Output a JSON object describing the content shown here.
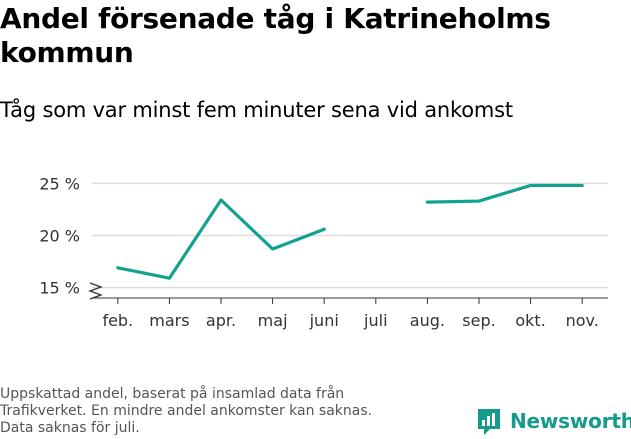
{
  "header": {
    "title": "Andel försenade tåg i Katrineholms kommun",
    "subtitle": "Tåg som var minst fem minuter sena vid ankomst"
  },
  "footer": {
    "note_lines": [
      "Uppskattad andel, baserat på insamlad data från",
      "Trafikverket. En mindre andel ankomster kan saknas.",
      "Data saknas för juli."
    ],
    "brand": "Newsworthy",
    "brand_icon": "newsworthy-logo-icon"
  },
  "colors": {
    "line": "#13a190",
    "brand": "#159a8c",
    "grid": "#dddddd",
    "axis": "#333333"
  },
  "chart_data": {
    "type": "line",
    "categories": [
      "feb.",
      "mars",
      "apr.",
      "maj",
      "juni",
      "juli",
      "aug.",
      "sep.",
      "okt.",
      "nov."
    ],
    "series": [
      {
        "values": [
          16.9,
          15.9,
          23.4,
          18.7,
          20.6,
          null,
          23.2,
          23.3,
          24.8,
          24.8
        ]
      }
    ],
    "yticks": [
      15,
      20,
      25
    ],
    "ytick_labels": [
      "15 %",
      "20 %",
      "25 %"
    ],
    "ylim": [
      14,
      25.8
    ],
    "axis_break": true,
    "grid": true,
    "xlabel": "",
    "ylabel": ""
  }
}
